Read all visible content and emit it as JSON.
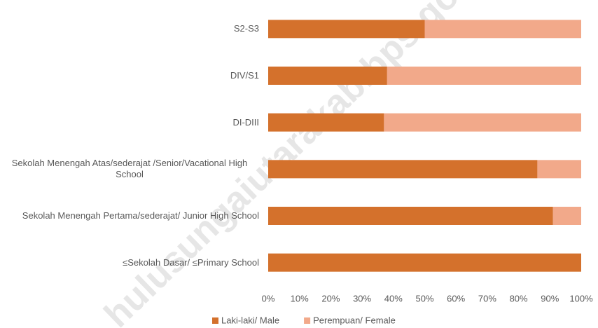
{
  "chart_data": {
    "type": "stacked_barh",
    "categories": [
      "S2-S3",
      "DIV/S1",
      "DI-DIII",
      "Sekolah Menengah Atas/sederajat /Senior/Vacational High School",
      "Sekolah Menengah Pertama/sederajat/ Junior High School",
      "≤Sekolah Dasar/ ≤Primary School"
    ],
    "series": [
      {
        "name": "Laki-laki/ Male",
        "color": "#d4712c",
        "values": [
          50,
          38,
          37,
          86,
          91,
          100
        ]
      },
      {
        "name": "Perempuan/ Female",
        "color": "#f2a98a",
        "values": [
          50,
          62,
          63,
          14,
          9,
          0
        ]
      }
    ],
    "xlim": [
      0,
      100
    ],
    "xticks": [
      {
        "value": 0,
        "label": "0%"
      },
      {
        "value": 10,
        "label": "10%"
      },
      {
        "value": 20,
        "label": "20%"
      },
      {
        "value": 30,
        "label": "30%"
      },
      {
        "value": 40,
        "label": "40%"
      },
      {
        "value": 50,
        "label": "50%"
      },
      {
        "value": 60,
        "label": "60%"
      },
      {
        "value": 70,
        "label": "70%"
      },
      {
        "value": 80,
        "label": "80%"
      },
      {
        "value": 90,
        "label": "90%"
      },
      {
        "value": 100,
        "label": "100%"
      }
    ],
    "legend": "bottom",
    "watermark": "hulusungaiutarakab.bps.go.id"
  }
}
